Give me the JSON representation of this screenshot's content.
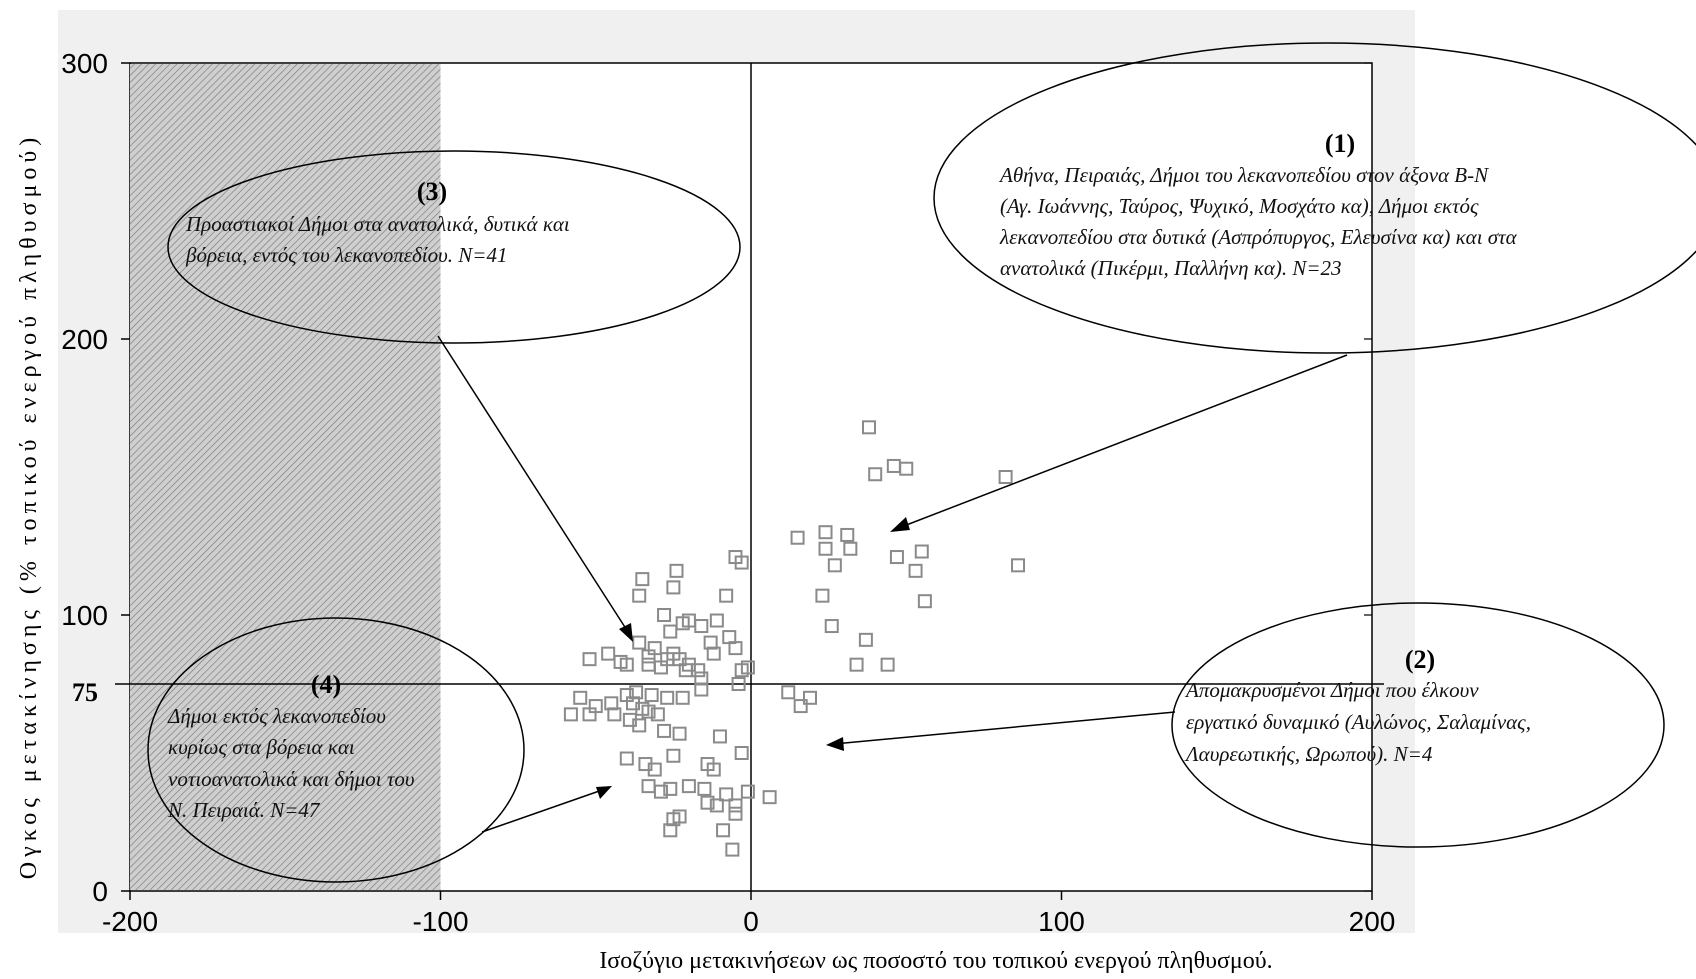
{
  "chart_data": {
    "type": "scatter",
    "title": "",
    "xlabel": "Ισοζύγιο μετακινήσεων ως ποσοστό του τοπικού ενεργού πληθυσμού.",
    "ylabel": "Ογκος μετακίνησης (% τοπικού ενεργού πληθυσμού)",
    "xlim": [
      -200,
      200
    ],
    "ylim": [
      0,
      300
    ],
    "x_ticks": [
      "-200",
      "-100",
      "0",
      "100",
      "200"
    ],
    "y_ticks": [
      "0",
      "100",
      "200",
      "300"
    ],
    "reference_lines": {
      "x": 0,
      "y": 75,
      "y_label": "75"
    },
    "shaded_region": {
      "x_from": -200,
      "x_to": -100
    },
    "grid": false,
    "legend": "none",
    "colors": {
      "background": "#f0f0f0",
      "point": "#8a8a8a",
      "shade": "#c8c8c8"
    },
    "points": [
      [
        38,
        168
      ],
      [
        40,
        151
      ],
      [
        46,
        154
      ],
      [
        50,
        153
      ],
      [
        82,
        150
      ],
      [
        15,
        128
      ],
      [
        24,
        130
      ],
      [
        31,
        129
      ],
      [
        24,
        124
      ],
      [
        32,
        124
      ],
      [
        27,
        118
      ],
      [
        47,
        121
      ],
      [
        55,
        123
      ],
      [
        53,
        116
      ],
      [
        86,
        118
      ],
      [
        23,
        107
      ],
      [
        56,
        105
      ],
      [
        26,
        96
      ],
      [
        37,
        91
      ],
      [
        34,
        82
      ],
      [
        44,
        82
      ],
      [
        19,
        70
      ],
      [
        12,
        72
      ],
      [
        16,
        67
      ],
      [
        6,
        34
      ],
      [
        -35,
        113
      ],
      [
        -24,
        116
      ],
      [
        -36,
        107
      ],
      [
        -25,
        110
      ],
      [
        -5,
        121
      ],
      [
        -3,
        119
      ],
      [
        -8,
        107
      ],
      [
        -28,
        100
      ],
      [
        -22,
        97
      ],
      [
        -20,
        98
      ],
      [
        -26,
        94
      ],
      [
        -16,
        96
      ],
      [
        -11,
        98
      ],
      [
        -13,
        90
      ],
      [
        -7,
        92
      ],
      [
        -36,
        90
      ],
      [
        -31,
        88
      ],
      [
        -25,
        86
      ],
      [
        -33,
        85
      ],
      [
        -27,
        84
      ],
      [
        -23,
        84
      ],
      [
        -20,
        82
      ],
      [
        -17,
        80
      ],
      [
        -12,
        86
      ],
      [
        -5,
        88
      ],
      [
        -3,
        80
      ],
      [
        -1,
        81
      ],
      [
        -4,
        75
      ],
      [
        -52,
        84
      ],
      [
        -46,
        86
      ],
      [
        -42,
        83
      ],
      [
        -40,
        82
      ],
      [
        -33,
        82
      ],
      [
        -29,
        81
      ],
      [
        -21,
        80
      ],
      [
        -16,
        77
      ],
      [
        -16,
        73
      ],
      [
        -37,
        72
      ],
      [
        -32,
        71
      ],
      [
        -27,
        70
      ],
      [
        -22,
        70
      ],
      [
        -55,
        70
      ],
      [
        -50,
        67
      ],
      [
        -45,
        68
      ],
      [
        -40,
        71
      ],
      [
        -38,
        68
      ],
      [
        -35,
        66
      ],
      [
        -33,
        65
      ],
      [
        -30,
        64
      ],
      [
        -58,
        64
      ],
      [
        -52,
        64
      ],
      [
        -44,
        64
      ],
      [
        -39,
        62
      ],
      [
        -36,
        60
      ],
      [
        -28,
        58
      ],
      [
        -23,
        57
      ],
      [
        -40,
        48
      ],
      [
        -34,
        46
      ],
      [
        -31,
        44
      ],
      [
        -25,
        49
      ],
      [
        -10,
        56
      ],
      [
        -3,
        50
      ],
      [
        -14,
        46
      ],
      [
        -12,
        44
      ],
      [
        -33,
        38
      ],
      [
        -29,
        36
      ],
      [
        -26,
        37
      ],
      [
        -20,
        38
      ],
      [
        -15,
        37
      ],
      [
        -8,
        35
      ],
      [
        -1,
        36
      ],
      [
        -14,
        32
      ],
      [
        -11,
        31
      ],
      [
        -5,
        31
      ],
      [
        -23,
        27
      ],
      [
        -25,
        26
      ],
      [
        -26,
        22
      ],
      [
        -9,
        22
      ],
      [
        -5,
        28
      ],
      [
        -6,
        15
      ]
    ],
    "annotations": [
      {
        "number": "(1)",
        "lines": [
          "Αθήνα, Πειραιάς, Δήμοι του λεκανοπεδίου στον άξονα Β-Ν",
          "(Αγ. Ιωάννης, Ταύρος, Ψυχικό, Μοσχάτο κα), Δήμοι εκτός",
          "λεκανοπεδίου στα δυτικά (Ασπρόπυργος, Ελευσίνα κα) και στα",
          "ανατολικά (Πικέρμι, Παλλήνη κα). N=23"
        ]
      },
      {
        "number": "(2)",
        "lines": [
          "Απομακρυσμένοι Δήμοι που έλκουν",
          "εργατικό δυναμικό (Αυλώνος, Σαλαμίνας,",
          "Λαυρεωτικής, Ωρωπού).      N=4"
        ]
      },
      {
        "number": "(3)",
        "lines": [
          "Προαστιακοί Δήμοι στα ανατολικά, δυτικά και",
          "βόρεια,  εντός του λεκανοπεδίου. N=41"
        ]
      },
      {
        "number": "(4)",
        "lines": [
          "Δήμοι εκτός λεκανοπεδίου",
          "κυρίως στα βόρεια και",
          "νοτιοανατολικά και δήμοι του",
          "Ν. Πειραιά. N=47"
        ]
      }
    ]
  }
}
